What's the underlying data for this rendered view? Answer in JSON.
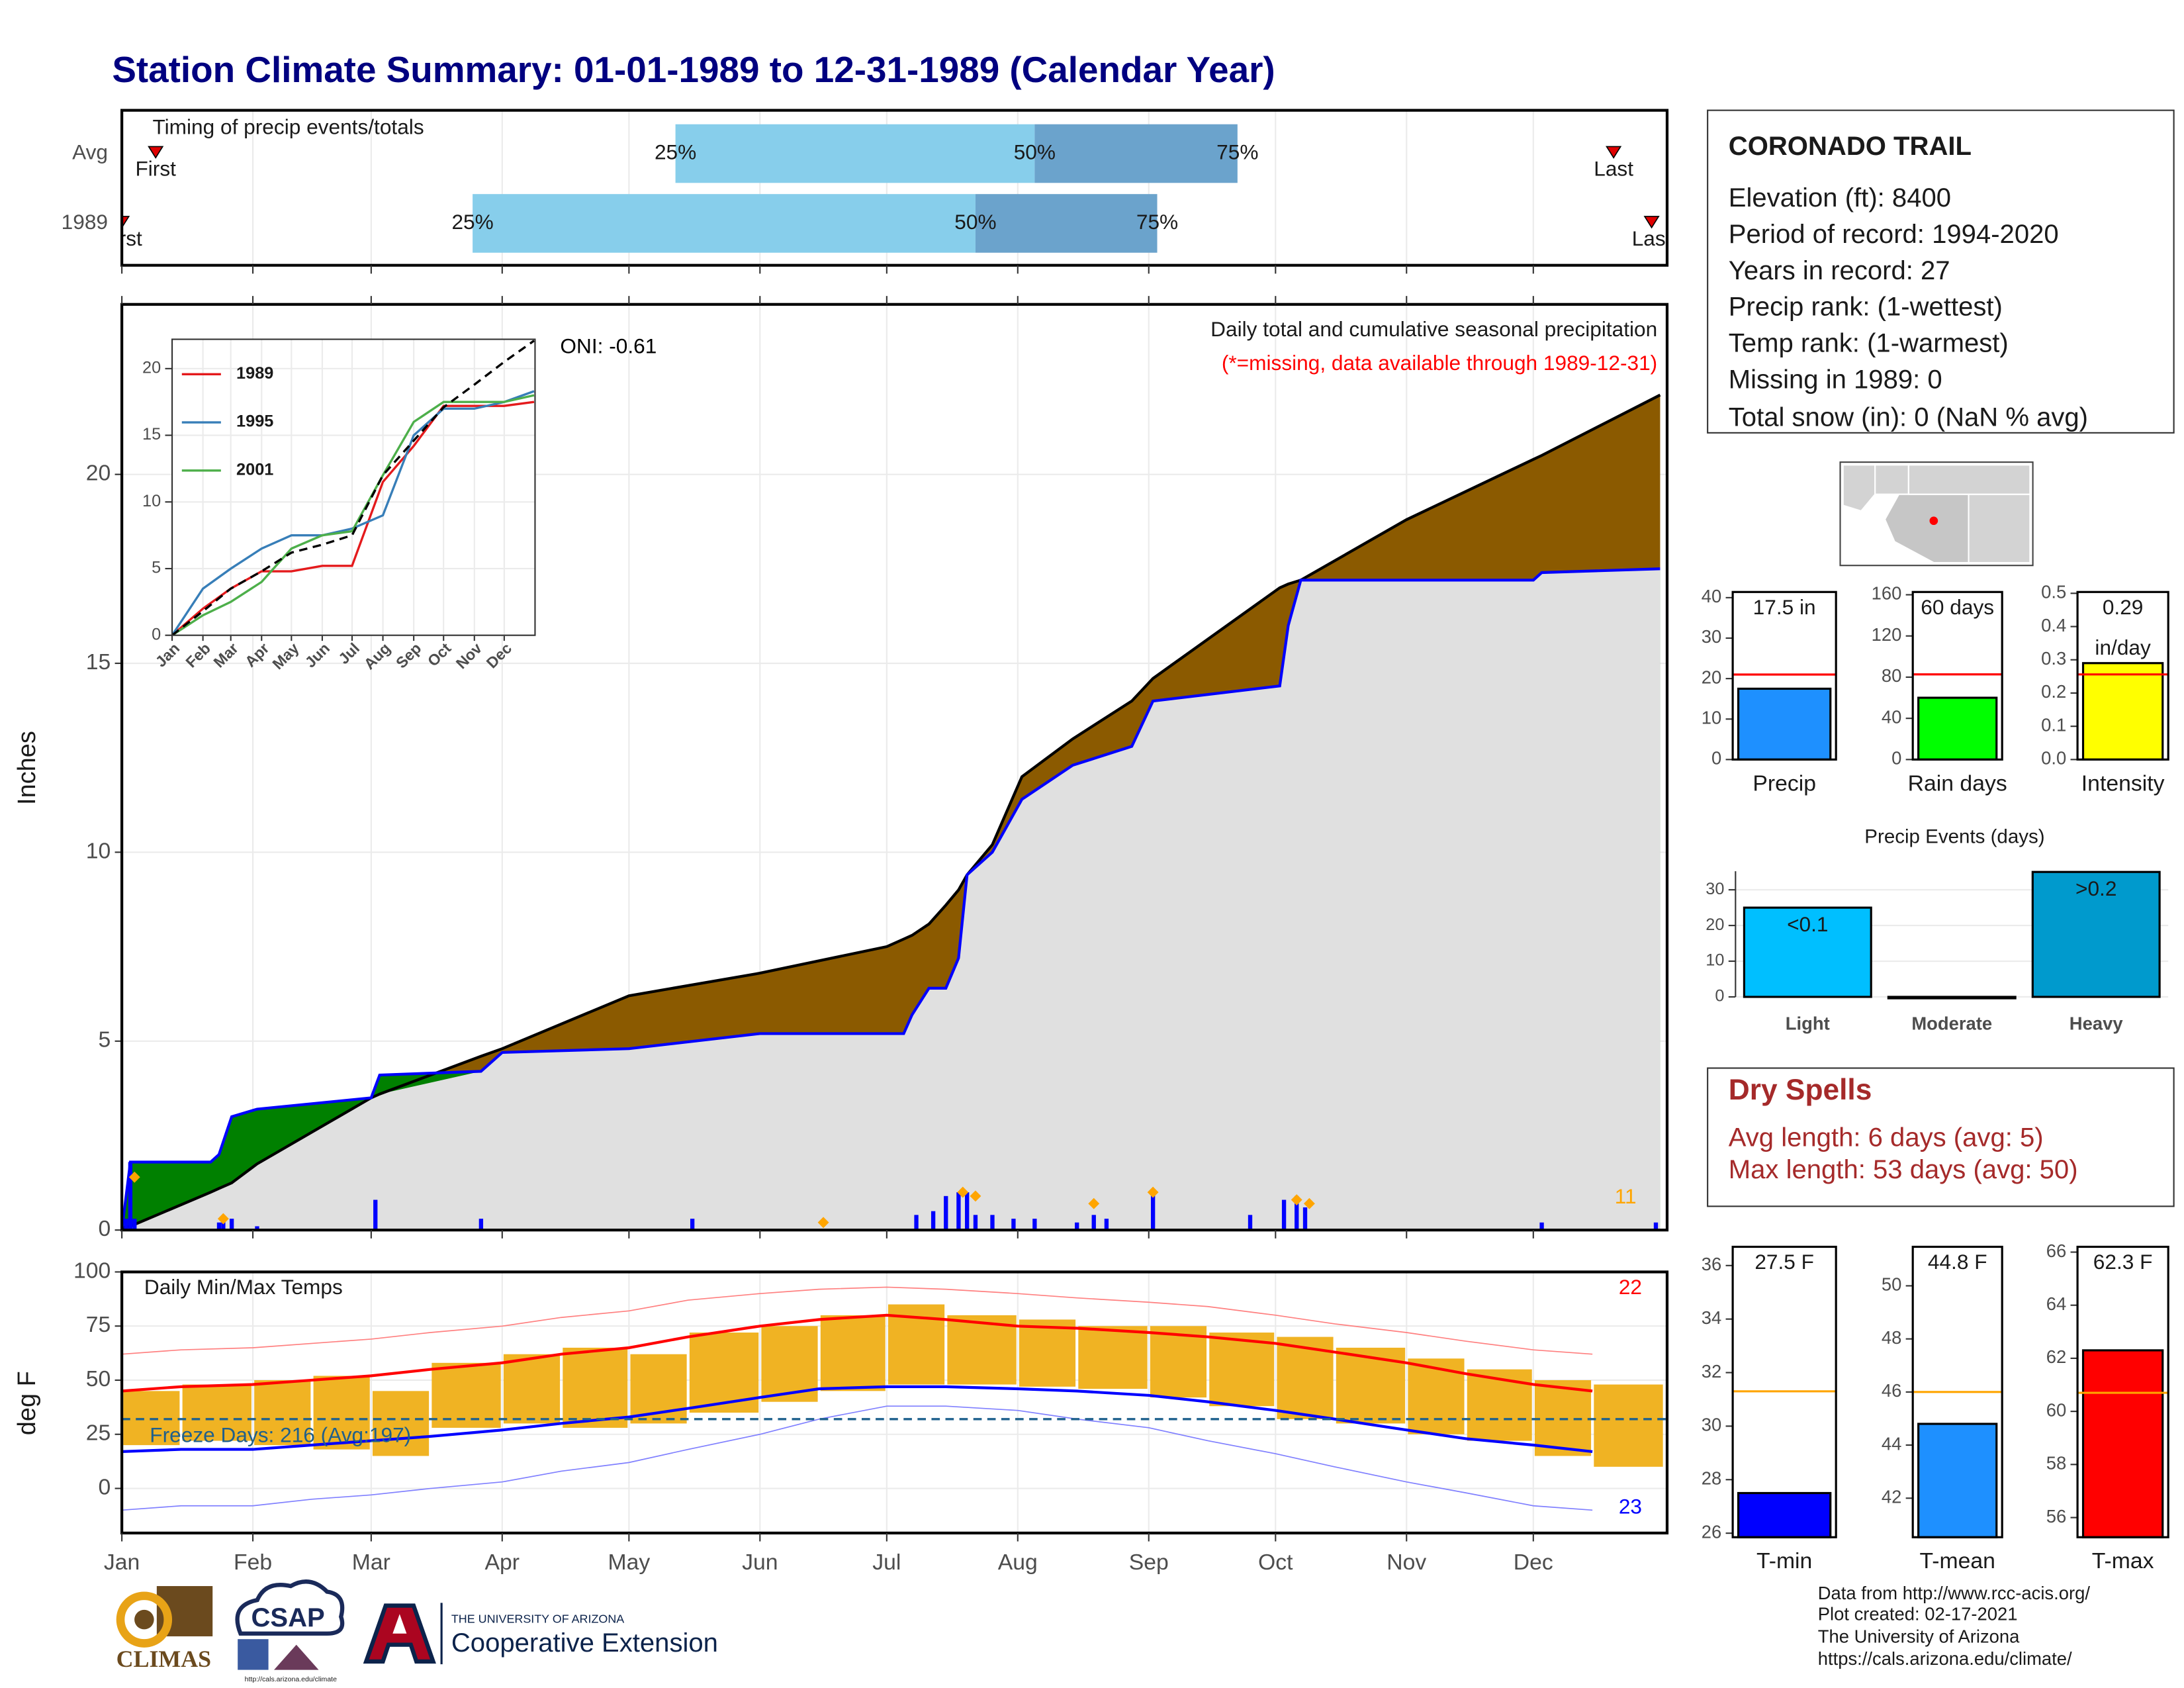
{
  "title": "Station Climate Summary: 01-01-1989 to 12-31-1989 (Calendar Year)",
  "station": {
    "name": "CORONADO TRAIL",
    "lines": [
      "Elevation (ft): 8400",
      "Period of record: 1994-2020",
      "Years in record: 27",
      "Precip rank:  (1-wettest)",
      "Temp rank:  (1-warmest)",
      "Missing in 1989: 0",
      "Total snow (in): 0 (NaN % avg)"
    ]
  },
  "dry_spells": {
    "title": "Dry Spells",
    "lines": [
      "Avg length: 6 days (avg: 5)",
      "Max length: 53 days (avg: 50)"
    ]
  },
  "footer": [
    "Data from http://www.rcc-acis.org/",
    "Plot created: 02-17-2021",
    "The University of Arizona",
    "https://cals.arizona.edu/climate/"
  ],
  "logos": {
    "climas": "CLIMAS",
    "csap": "CSAP",
    "csap_url": "http://cals.arizona.edu/climate",
    "university": "THE UNIVERSITY OF ARIZONA",
    "extension": "Cooperative Extension"
  },
  "chart_data": [
    {
      "type": "timing",
      "title": "Timing of precip events/totals",
      "points": [
        "First",
        "25%",
        "50%",
        "75%",
        "Last"
      ],
      "series": [
        {
          "name": "Avg",
          "values": [
            9,
            132,
            217,
            265,
            354
          ]
        },
        {
          "name": "1989",
          "values": [
            1,
            84,
            203,
            246,
            363
          ]
        }
      ],
      "colors": [
        "#87ceeb",
        "#6ba3cc"
      ],
      "marker_color": "#e00000",
      "xlim": [
        1,
        366
      ]
    },
    {
      "type": "cumulative",
      "title": "Daily total and cumulative seasonal precipitation",
      "subtitle": "(*=missing, data available through 1989-12-31)",
      "annotations": [
        "ONI: -0.61",
        "11"
      ],
      "annotation_colors": [
        "#000000",
        "#ffa500"
      ],
      "ylabel": "Inches",
      "x": [
        1,
        3,
        22,
        24,
        27,
        33,
        60,
        62,
        86,
        91,
        121,
        152,
        182,
        186,
        188,
        192,
        196,
        199,
        201,
        207,
        214,
        226,
        240,
        245,
        275,
        277,
        280,
        305,
        335,
        337,
        365
      ],
      "series": [
        {
          "color": "#000000",
          "values": [
            0.05,
            0.1,
            1.0,
            1.1,
            1.25,
            1.75,
            3.5,
            3.6,
            4.6,
            4.8,
            6.2,
            6.8,
            7.5,
            7.7,
            7.8,
            8.1,
            8.6,
            9.0,
            9.4,
            10.2,
            12.0,
            13.0,
            14.0,
            14.6,
            17.0,
            17.1,
            17.2,
            18.8,
            20.4,
            20.5,
            22.1
          ]
        },
        {
          "color": "#0000ff",
          "values": [
            0,
            1.8,
            1.8,
            2.0,
            3.0,
            3.2,
            3.5,
            4.1,
            4.2,
            4.7,
            4.8,
            5.2,
            5.2,
            5.2,
            5.7,
            6.4,
            6.4,
            7.2,
            9.4,
            10.0,
            11.4,
            12.3,
            12.8,
            14.0,
            14.4,
            16.0,
            17.2,
            17.2,
            17.2,
            17.4,
            17.5
          ]
        }
      ],
      "fill_colors": [
        "#8b5a00",
        "#008000",
        "#e0e0e0"
      ],
      "daily": {
        "color": "#0000ff",
        "x": [
          2,
          3,
          4,
          24,
          25,
          27,
          33,
          61,
          86,
          136,
          189,
          193,
          196,
          199,
          201,
          203,
          207,
          212,
          217,
          227,
          231,
          234,
          245,
          268,
          276,
          279,
          281,
          337,
          364
        ],
        "values": [
          0.3,
          1.8,
          0.3,
          0.2,
          0.3,
          0.3,
          0.1,
          0.8,
          0.3,
          0.3,
          0.4,
          0.5,
          0.9,
          1.0,
          1.0,
          0.4,
          0.4,
          0.3,
          0.3,
          0.2,
          0.4,
          0.3,
          1.0,
          0.4,
          0.8,
          0.9,
          0.6,
          0.2,
          0.2
        ]
      },
      "highlights": {
        "color": "#ffa500",
        "x": [
          4,
          25,
          167,
          200,
          203,
          231,
          245,
          279,
          282
        ],
        "values": [
          1.4,
          0.3,
          0.2,
          1.0,
          0.9,
          0.7,
          1.0,
          0.8,
          0.7
        ]
      },
      "xlim": [
        1,
        366
      ],
      "ylim": [
        0,
        24.5
      ],
      "yticks": [
        0,
        5,
        10,
        15,
        20
      ],
      "grid": true
    },
    {
      "type": "line",
      "x": [
        1,
        32,
        60,
        91,
        121,
        152,
        182,
        213,
        244,
        274,
        305,
        335,
        365
      ],
      "series": [
        {
          "name": "1989",
          "color": "#e41a1c",
          "values": [
            0,
            2.0,
            3.5,
            4.8,
            4.8,
            5.2,
            5.2,
            11.5,
            14.2,
            17.2,
            17.2,
            17.2,
            17.5
          ]
        },
        {
          "name": "1995",
          "color": "#377eb8",
          "values": [
            0,
            3.5,
            5,
            6.5,
            7.5,
            7.5,
            8,
            9,
            15,
            17,
            17,
            17.5,
            18.3
          ]
        },
        {
          "name": "2001",
          "color": "#4daf4a",
          "values": [
            0,
            1.5,
            2.5,
            4,
            6.5,
            7.5,
            7.8,
            12,
            16,
            17.5,
            17.5,
            17.5,
            18
          ]
        },
        {
          "color": "#000000",
          "dash": true,
          "values": [
            0,
            1.8,
            3.5,
            4.8,
            6.2,
            6.8,
            7.5,
            12,
            14.6,
            17.1,
            18.8,
            20.5,
            22.1
          ]
        }
      ],
      "xlim": [
        1,
        366
      ],
      "ylim": [
        0,
        22.2
      ],
      "yticks": [
        0,
        5,
        10,
        15,
        20
      ],
      "xticks": [
        {
          "value": 1,
          "label": "Jan"
        },
        {
          "value": 32,
          "label": "Feb"
        },
        {
          "value": 60,
          "label": "Mar"
        },
        {
          "value": 91,
          "label": "Apr"
        },
        {
          "value": 121,
          "label": "May"
        },
        {
          "value": 152,
          "label": "Jun"
        },
        {
          "value": 182,
          "label": "Jul"
        },
        {
          "value": 213,
          "label": "Aug"
        },
        {
          "value": 244,
          "label": "Sep"
        },
        {
          "value": 274,
          "label": "Oct"
        },
        {
          "value": 305,
          "label": "Nov"
        },
        {
          "value": 335,
          "label": "Dec"
        }
      ]
    },
    {
      "type": "temperature",
      "title": "Daily Min/Max Temps",
      "annotation": "Freeze Days: 216 (Avg:197)",
      "annotation_color": "#1f5f8b",
      "annotations": [
        {
          "text": "22",
          "color": "#ff0000"
        },
        {
          "text": "23",
          "color": "#0000ff"
        }
      ],
      "ylabel": "deg F",
      "x": [
        1,
        15,
        32,
        46,
        60,
        74,
        91,
        105,
        121,
        135,
        152,
        166,
        182,
        196,
        213,
        227,
        244,
        258,
        274,
        288,
        305,
        319,
        335,
        349
      ],
      "range": {
        "color": "#f0b323",
        "low": [
          20,
          22,
          20,
          18,
          15,
          28,
          30,
          28,
          30,
          35,
          40,
          45,
          48,
          48,
          47,
          46,
          42,
          38,
          32,
          30,
          25,
          22,
          15,
          10
        ],
        "high": [
          45,
          48,
          50,
          52,
          45,
          58,
          62,
          65,
          62,
          72,
          75,
          80,
          85,
          80,
          78,
          75,
          75,
          72,
          70,
          65,
          60,
          55,
          50,
          48
        ]
      },
      "series": [
        {
          "color": "#ff0000",
          "values": [
            45,
            47,
            48,
            50,
            52,
            55,
            58,
            62,
            65,
            70,
            75,
            78,
            80,
            78,
            75,
            74,
            72,
            70,
            67,
            63,
            58,
            53,
            48,
            45
          ]
        },
        {
          "color": "#0000ff",
          "values": [
            17,
            18,
            18,
            20,
            22,
            24,
            27,
            30,
            33,
            37,
            42,
            46,
            47,
            47,
            46,
            45,
            43,
            40,
            36,
            32,
            27,
            23,
            20,
            17
          ]
        },
        {
          "color": "#ff8080",
          "thin": true,
          "values": [
            62,
            64,
            65,
            67,
            69,
            72,
            75,
            79,
            82,
            87,
            90,
            92,
            93,
            92,
            90,
            88,
            86,
            84,
            80,
            76,
            72,
            68,
            64,
            62
          ]
        },
        {
          "color": "#8080ff",
          "thin": true,
          "values": [
            -10,
            -8,
            -8,
            -5,
            -3,
            0,
            3,
            8,
            12,
            18,
            25,
            32,
            38,
            38,
            36,
            32,
            28,
            22,
            16,
            10,
            3,
            -2,
            -8,
            -10
          ]
        }
      ],
      "freeze_line": 32,
      "freeze_color": "#1f618d",
      "xlim": [
        1,
        366
      ],
      "ylim": [
        -20.6,
        100
      ],
      "yticks": [
        0,
        25,
        50,
        75,
        100
      ],
      "grid": true,
      "xticks": [
        {
          "value": 1,
          "label": "Jan"
        },
        {
          "value": 32,
          "label": "Feb"
        },
        {
          "value": 60,
          "label": "Mar"
        },
        {
          "value": 91,
          "label": "Apr"
        },
        {
          "value": 121,
          "label": "May"
        },
        {
          "value": 152,
          "label": "Jun"
        },
        {
          "value": 182,
          "label": "Jul"
        },
        {
          "value": 213,
          "label": "Aug"
        },
        {
          "value": 244,
          "label": "Sep"
        },
        {
          "value": 274,
          "label": "Oct"
        },
        {
          "value": 305,
          "label": "Nov"
        },
        {
          "value": 335,
          "label": "Dec"
        }
      ]
    },
    {
      "type": "bar",
      "categories": [
        "Precip"
      ],
      "values": [
        17.5
      ],
      "value_labels": [
        "17.5 in"
      ],
      "color": "#1e90ff",
      "avg": 21.0,
      "avg_color": "#ff0000",
      "ylim": [
        0,
        41.4
      ],
      "yticks": [
        0,
        10,
        20,
        30,
        40
      ]
    },
    {
      "type": "bar",
      "categories": [
        "Rain days"
      ],
      "values": [
        60
      ],
      "value_labels": [
        "60 days"
      ],
      "color": "#00ff00",
      "avg": 82.7,
      "avg_color": "#ff0000",
      "ylim": [
        0,
        162.7
      ],
      "yticks": [
        0,
        40,
        80,
        120,
        160
      ]
    },
    {
      "type": "bar",
      "categories": [
        "Intensity"
      ],
      "values": [
        0.29
      ],
      "unit": "in/day",
      "color": "#ffff00",
      "avg": 0.256,
      "avg_color": "#ff0000",
      "ylim": [
        0,
        0.504
      ],
      "yticks": [
        {
          "value": 0,
          "label": "0.0"
        },
        0.1,
        0.2,
        0.3,
        0.4,
        {
          "value": 0.5,
          "label": "0.5"
        }
      ]
    },
    {
      "type": "bar",
      "title": "Precip Events (days)",
      "categories": [
        "Light",
        "Moderate",
        "Heavy"
      ],
      "values": [
        25,
        0,
        35
      ],
      "bar_labels": [
        "<0.1",
        null,
        ">0.2"
      ],
      "colors": [
        "#00bfff",
        "#00bfff",
        "#009acd"
      ],
      "ylim": [
        0,
        35.2
      ],
      "yticks": [
        0,
        10,
        20,
        30
      ],
      "grid": true
    },
    {
      "type": "bar",
      "categories": [
        "T-min"
      ],
      "values": [
        27.5
      ],
      "value_labels": [
        "27.5 F"
      ],
      "color": "#0000ff",
      "avg": 31.3,
      "avg_color": "#ffa500",
      "ylim": [
        25.85,
        36.7
      ],
      "yticks": [
        26,
        28,
        30,
        32,
        34,
        36
      ]
    },
    {
      "type": "bar",
      "categories": [
        "T-mean"
      ],
      "values": [
        44.8
      ],
      "value_labels": [
        "44.8 F"
      ],
      "color": "#1e90ff",
      "avg": 46.0,
      "avg_color": "#ffa500",
      "ylim": [
        40.53,
        51.47
      ],
      "yticks": [
        42,
        44,
        46,
        48,
        50
      ]
    },
    {
      "type": "bar",
      "categories": [
        "T-max"
      ],
      "values": [
        62.3
      ],
      "value_labels": [
        "62.3 F"
      ],
      "color": "#ff0000",
      "avg": 60.7,
      "avg_color": "#ffa500",
      "ylim": [
        55.26,
        66.2
      ],
      "yticks": [
        56,
        58,
        60,
        62,
        64,
        66
      ]
    }
  ]
}
